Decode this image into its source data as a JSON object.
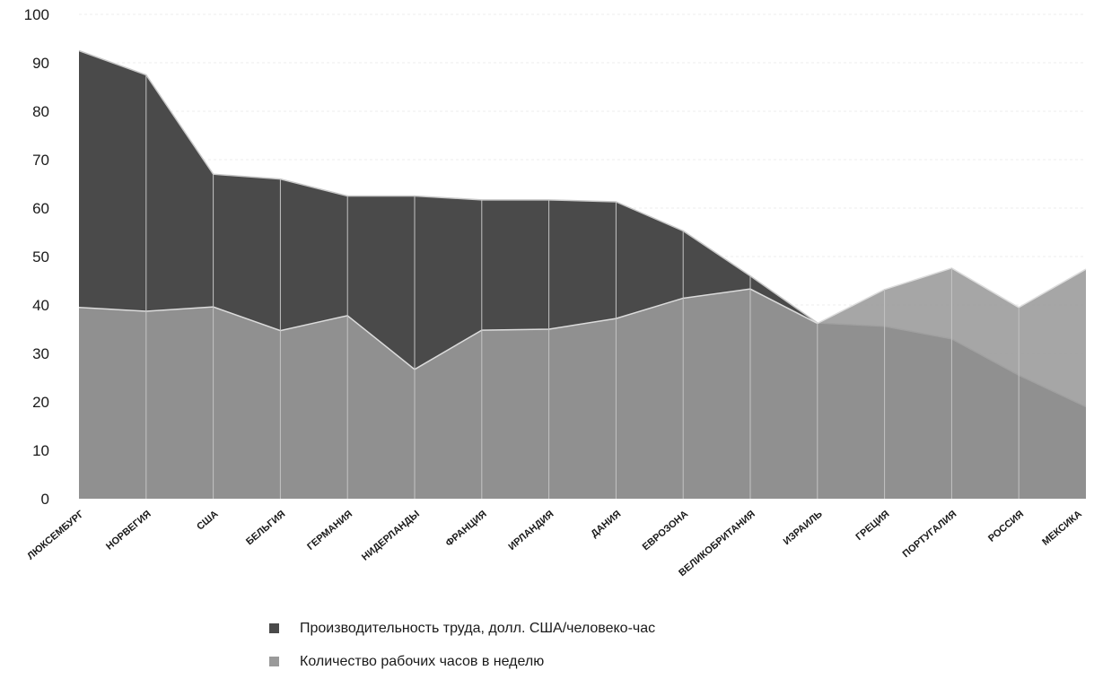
{
  "chart_data": {
    "type": "area",
    "categories": [
      "ЛЮКСЕМБУРГ",
      "НОРВЕГИЯ",
      "США",
      "БЕЛЬГИЯ",
      "ГЕРМАНИЯ",
      "НИДЕРЛАНДЫ",
      "ФРАНЦИЯ",
      "ИРЛАНДИЯ",
      "ДАНИЯ",
      "ЕВРОЗОНА",
      "ВЕЛИКОБРИТАНИЯ",
      "ИЗРАИЛЬ",
      "ГРЕЦИЯ",
      "ПОРТУГАЛИЯ",
      "РОССИЯ",
      "МЕКСИКА"
    ],
    "series": [
      {
        "name": "Производительность труда, долл. США/человеко-час",
        "color": "#4a4a4a",
        "values": [
          92.5,
          87.5,
          67.0,
          66.0,
          62.5,
          62.5,
          61.7,
          61.7,
          61.3,
          55.3,
          46.0,
          36.3,
          35.6,
          33.0,
          25.5,
          19.0
        ]
      },
      {
        "name": "Количество рабочих часов в неделю",
        "color": "#9a9a9a",
        "values": [
          39.5,
          38.7,
          39.6,
          34.7,
          37.8,
          26.7,
          34.8,
          35.0,
          37.2,
          41.4,
          43.3,
          36.2,
          43.2,
          47.6,
          39.5,
          47.4
        ]
      }
    ],
    "ylim": [
      0,
      100
    ],
    "yticks": [
      0,
      10,
      20,
      30,
      40,
      50,
      60,
      70,
      80,
      90,
      100
    ],
    "legend_position": "bottom",
    "title": "",
    "xlabel": "",
    "ylabel": ""
  }
}
